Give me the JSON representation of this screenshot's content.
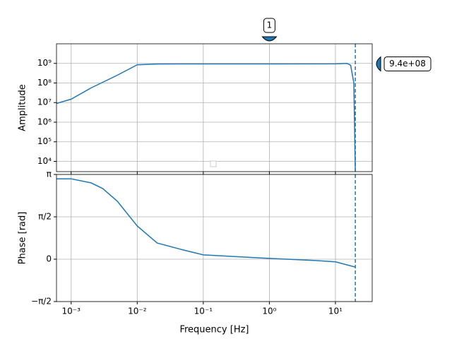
{
  "chart_data": [
    {
      "type": "line",
      "ylabel": "Amplitude",
      "xscale": "log",
      "yscale": "log",
      "grid": true,
      "x": [
        0.0006,
        0.001,
        0.002,
        0.005,
        0.01,
        0.02,
        0.1,
        1,
        10,
        15,
        17,
        19,
        20
      ],
      "series": [
        {
          "color": "#1f77b4",
          "values": [
            9000000,
            15000000,
            56000000,
            250000000,
            850000000,
            930000000,
            940000000,
            940000000,
            950000000,
            1000000000,
            800000000,
            100000000,
            3000
          ]
        }
      ],
      "xlim": [
        0.0006,
        36
      ],
      "ylim": [
        3000,
        10000000000
      ],
      "xticks": [
        0.001,
        0.01,
        0.1,
        1,
        10
      ],
      "xtick_labels": false,
      "yticks": [
        {
          "value": 10000,
          "label": "10⁴"
        },
        {
          "value": 100000,
          "label": "10⁵"
        },
        {
          "value": 1000000,
          "label": "10⁶"
        },
        {
          "value": 10000000,
          "label": "10⁷"
        },
        {
          "value": 100000000,
          "label": "10⁸"
        },
        {
          "value": 1000000000,
          "label": "10⁹"
        }
      ],
      "vline": 20,
      "annotations": [
        {
          "text": "1",
          "x": 1
        },
        {
          "text": "9.4e+08",
          "y": 940000000
        }
      ]
    },
    {
      "type": "line",
      "xlabel": "Frequency [Hz]",
      "ylabel": "Phase [rad]",
      "xscale": "log",
      "grid": true,
      "x": [
        0.0006,
        0.001,
        0.002,
        0.003,
        0.005,
        0.01,
        0.02,
        0.05,
        0.1,
        1,
        5,
        10,
        20
      ],
      "series": [
        {
          "color": "#1f77b4",
          "values": [
            2.98,
            2.98,
            2.83,
            2.62,
            2.15,
            1.23,
            0.6,
            0.34,
            0.16,
            0.03,
            -0.05,
            -0.1,
            -0.29
          ]
        }
      ],
      "xlim": [
        0.0006,
        36
      ],
      "ylim": [
        -1.5708,
        3.1416
      ],
      "xticks": [
        {
          "value": 0.001,
          "label": "10⁻³"
        },
        {
          "value": 0.01,
          "label": "10⁻²"
        },
        {
          "value": 0.1,
          "label": "10⁻¹"
        },
        {
          "value": 1,
          "label": "10⁰"
        },
        {
          "value": 10,
          "label": "10¹"
        }
      ],
      "yticks": [
        {
          "value": -1.5708,
          "label": "−π/2"
        },
        0,
        {
          "value": 1.5708,
          "label": "π/2"
        },
        {
          "value": 3.1416,
          "label": "π"
        }
      ],
      "vline": 20
    }
  ]
}
